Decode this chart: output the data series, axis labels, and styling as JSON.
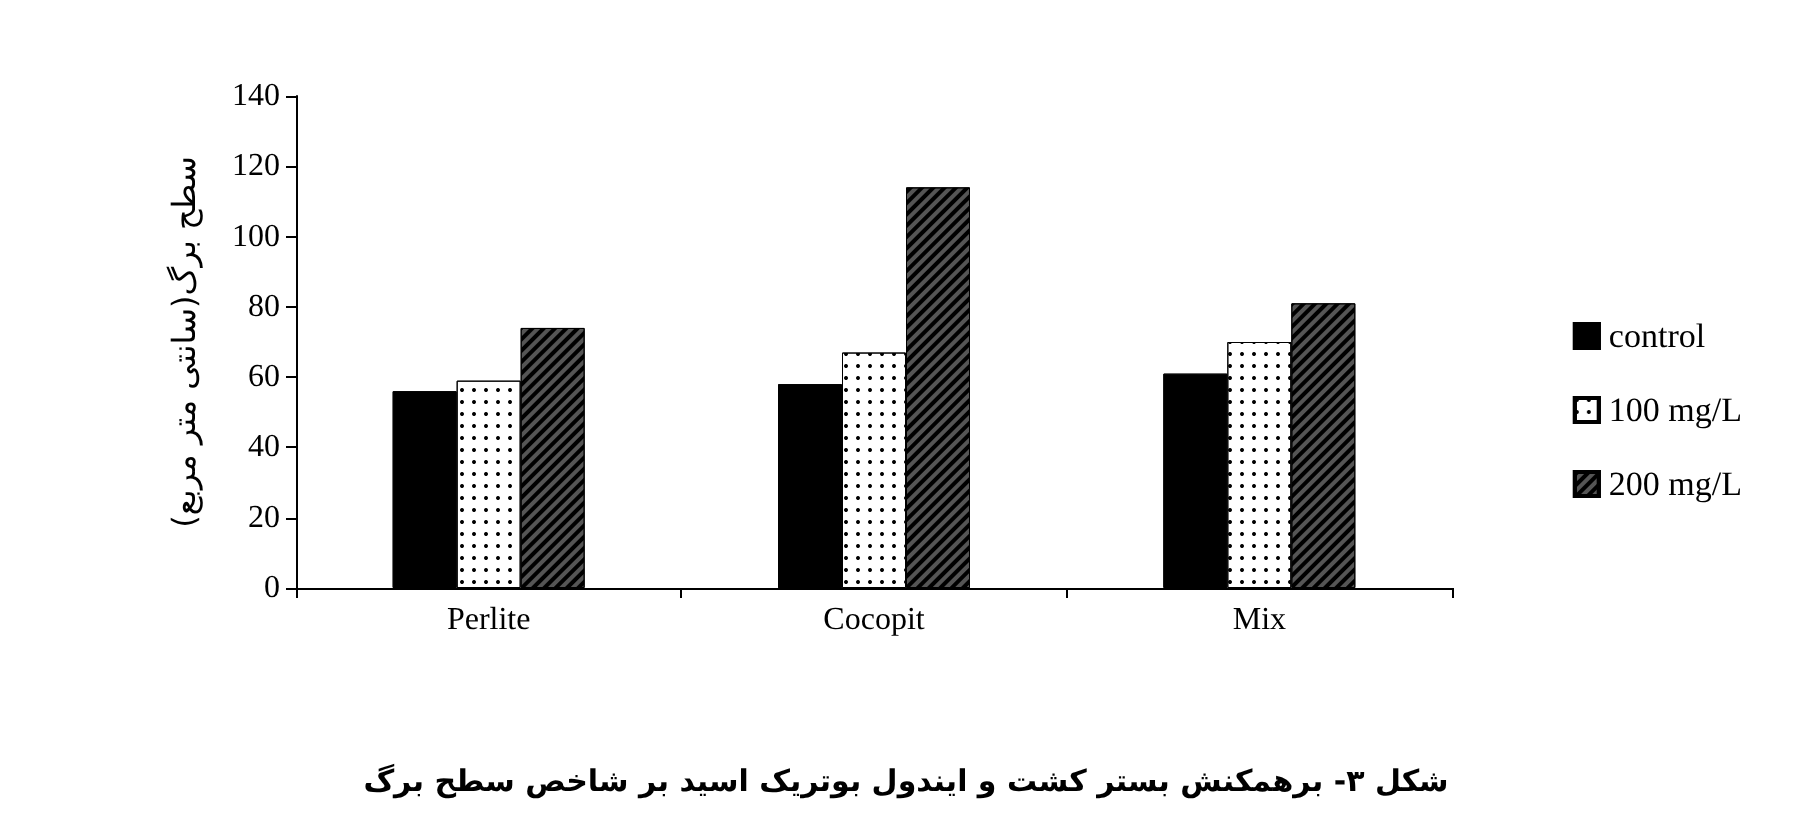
{
  "chart_data": {
    "type": "bar",
    "title": "شکل ۳- برهمکنش بستر کشت و ایندول بوتریک اسید بر شاخص سطح برگ",
    "ylabel": "سطح برگ(سانتی متر مربع)",
    "categories": [
      "Perlite",
      "Cocopit",
      "Mix"
    ],
    "series": [
      {
        "name": "control",
        "color": "#000000",
        "values": [
          56,
          58,
          61
        ]
      },
      {
        "name": "100 mg/L",
        "color": "#ffffff",
        "values": [
          59,
          67,
          70
        ]
      },
      {
        "name": "200 mg/L",
        "color": "#555555",
        "values": [
          74,
          114,
          81
        ]
      }
    ],
    "ylim": [
      0,
      140
    ],
    "yticks": [
      0,
      20,
      40,
      60,
      80,
      100,
      120,
      140
    ],
    "grid": false,
    "legend": "right"
  }
}
